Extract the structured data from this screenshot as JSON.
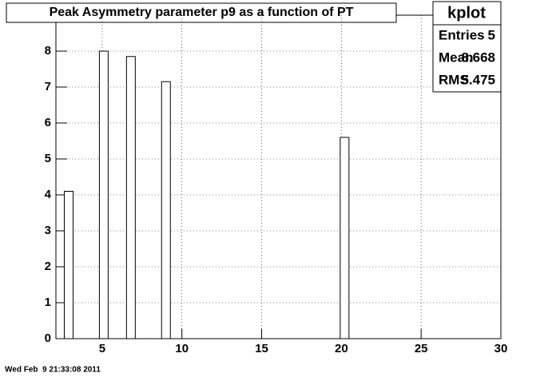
{
  "chart_data": {
    "type": "bar",
    "title": "Peak Asymmetry parameter p9 as a function of PT",
    "x": [
      2.9,
      5.1,
      6.8,
      9.0,
      20.2
    ],
    "values": [
      4.1,
      8.0,
      7.85,
      7.15,
      5.6
    ],
    "color": "#ffffff",
    "xlim": [
      2.1,
      30
    ],
    "xticks": [
      5,
      10,
      15,
      20,
      25,
      30
    ],
    "ylim": [
      0,
      9
    ],
    "yticks": [
      0,
      1,
      2,
      3,
      4,
      5,
      6,
      7,
      8
    ],
    "grid": true
  },
  "stats": {
    "title": "kplot",
    "rows": [
      [
        "Entries",
        5
      ],
      [
        "Mean",
        8.668
      ],
      [
        "RMS",
        5.475
      ]
    ]
  },
  "timestamp": "Wed Feb  9 21:33:08 2011"
}
